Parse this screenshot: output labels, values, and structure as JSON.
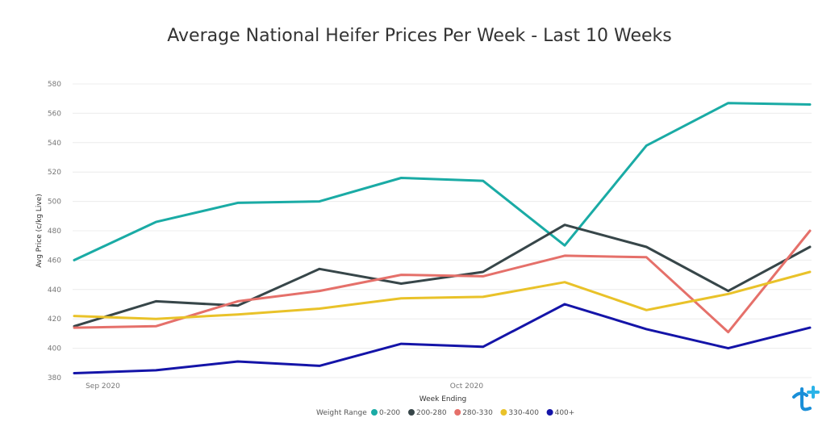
{
  "chart_data": {
    "type": "line",
    "title": "Average National Heifer Prices Per Week - Last 10 Weeks",
    "xlabel": "Week Ending",
    "ylabel": "Avg Price (c/kg Live)",
    "x_tick_labels": [
      "Sep 2020",
      "Oct 2020"
    ],
    "ylim": [
      380,
      580
    ],
    "yticks": [
      380,
      400,
      420,
      440,
      460,
      480,
      500,
      520,
      540,
      560,
      580
    ],
    "grid": true,
    "legend_title": "Weight Range",
    "legend_position": "bottom-center",
    "series": [
      {
        "name": "0-200",
        "color": "#1aaba5",
        "values": [
          460,
          486,
          499,
          500,
          516,
          514,
          470,
          538,
          567,
          566
        ]
      },
      {
        "name": "200-280",
        "color": "#374649",
        "values": [
          415,
          432,
          429,
          454,
          444,
          452,
          484,
          469,
          439,
          469
        ]
      },
      {
        "name": "280-330",
        "color": "#e5706a",
        "values": [
          414,
          415,
          432,
          439,
          450,
          449,
          463,
          462,
          411,
          480
        ]
      },
      {
        "name": "330-400",
        "color": "#e9c229",
        "values": [
          422,
          420,
          423,
          427,
          434,
          435,
          445,
          426,
          437,
          452
        ]
      },
      {
        "name": "400+",
        "color": "#1414a8",
        "values": [
          383,
          385,
          391,
          388,
          403,
          401,
          430,
          413,
          400,
          414
        ]
      }
    ]
  }
}
